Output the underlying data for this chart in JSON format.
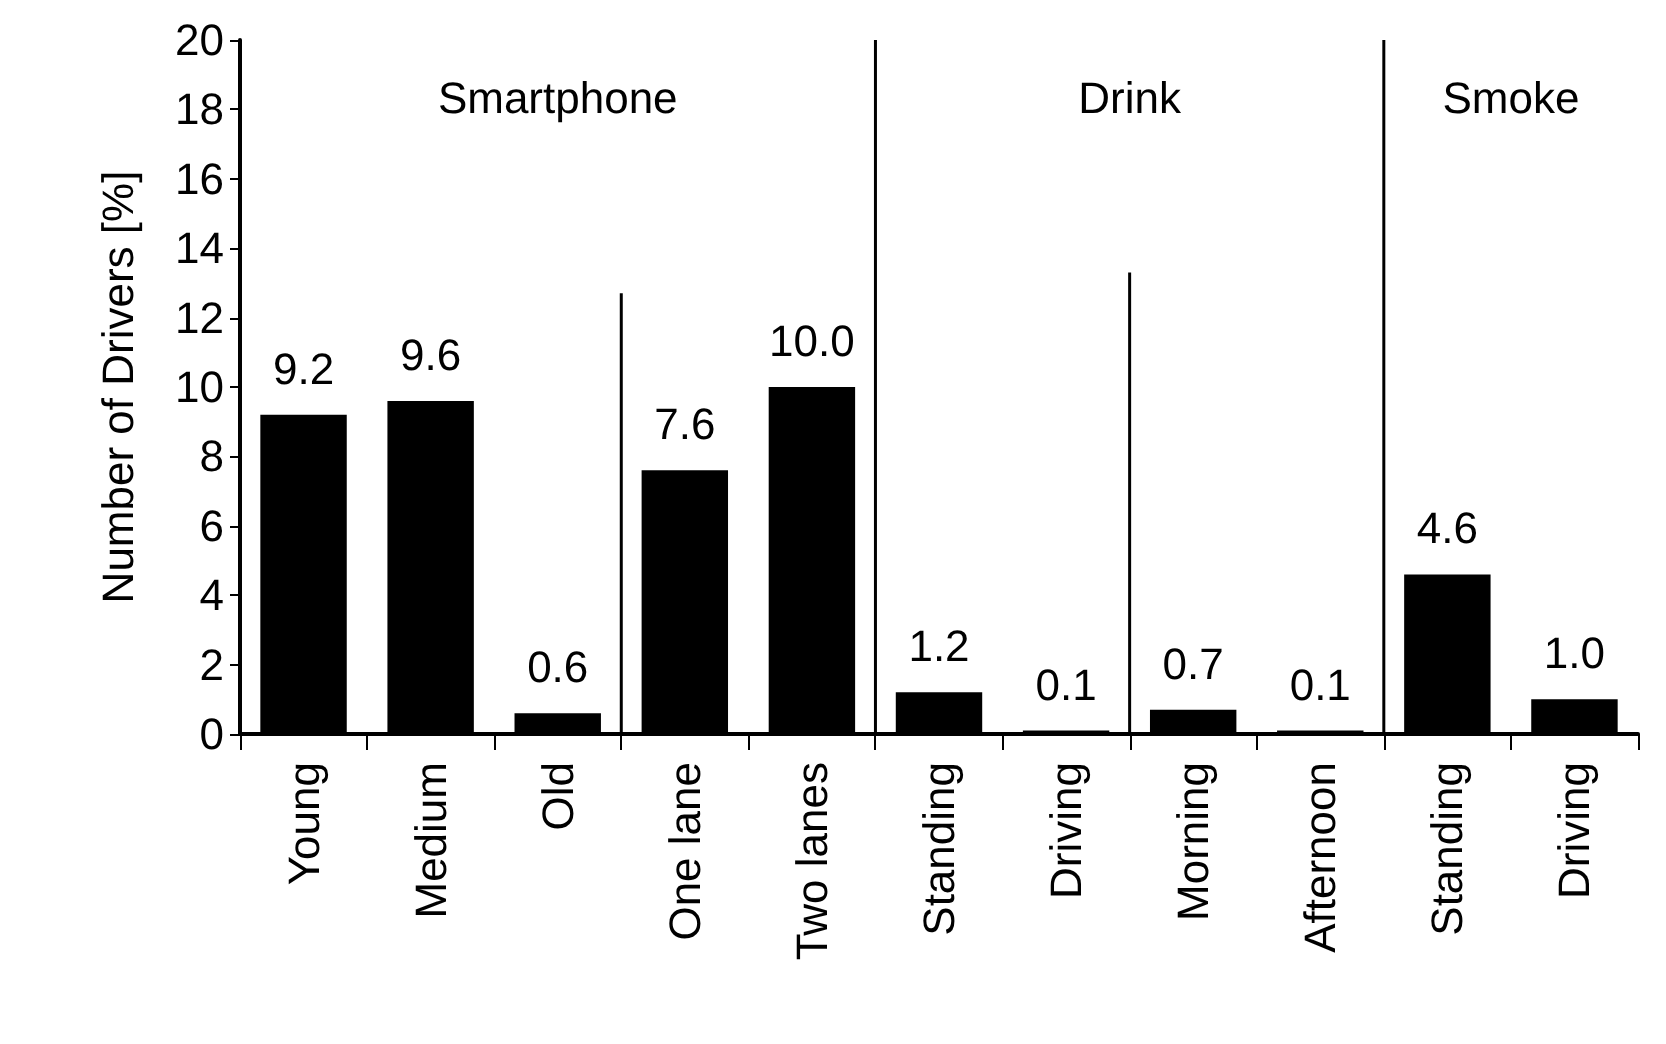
{
  "chart_data": {
    "type": "bar",
    "ylabel": "Number of Drivers [%]",
    "categories": [
      "Young",
      "Medium",
      "Old",
      "One lane",
      "Two lanes",
      "Standing",
      "Driving",
      "Morning",
      "Afternoon",
      "Standing",
      "Driving"
    ],
    "values": [
      9.2,
      9.6,
      0.6,
      7.6,
      10.0,
      1.2,
      0.1,
      0.7,
      0.1,
      4.6,
      1.0
    ],
    "value_labels": [
      "9.2",
      "9.6",
      "0.6",
      "7.6",
      "10.0",
      "1.2",
      "0.1",
      "0.7",
      "0.1",
      "4.6",
      "1.0"
    ],
    "color": "#000000",
    "ylim": [
      0,
      20
    ],
    "yticks": [
      0,
      2,
      4,
      6,
      8,
      10,
      12,
      14,
      16,
      18,
      20
    ],
    "grid": false,
    "annotations": [
      "Smartphone",
      "Drink",
      "Smoke"
    ]
  }
}
